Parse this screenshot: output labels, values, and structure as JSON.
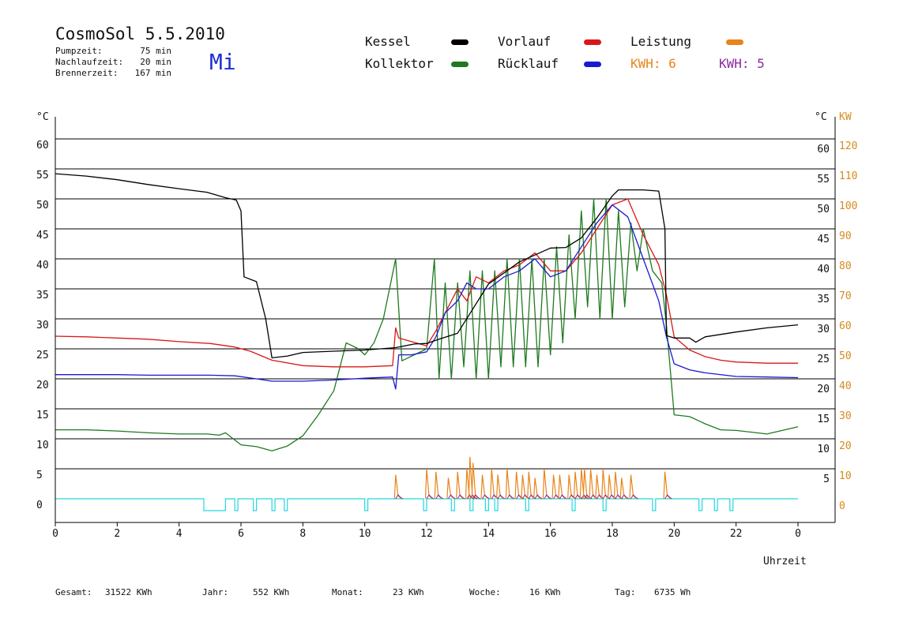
{
  "header": {
    "title": "CosmoSol 5.5.2010",
    "day": "Mi",
    "stats": [
      {
        "label": "Pumpzeit:",
        "value": "75 min"
      },
      {
        "label": "Nachlaufzeit:",
        "value": "20 min"
      },
      {
        "label": "Brennerzeit:",
        "value": "167 min"
      }
    ]
  },
  "legend": {
    "kessel": "Kessel",
    "kollektor": "Kollektor",
    "vorlauf": "Vorlauf",
    "ruecklauf": "Rücklauf",
    "leistung": "Leistung",
    "kwh1": "KWH: 6",
    "kwh2": "KWH: 5"
  },
  "footer": [
    {
      "label": "Gesamt:",
      "value": "31522 KWh"
    },
    {
      "label": "Jahr:",
      "value": "552 KWh"
    },
    {
      "label": "Monat:",
      "value": "23 KWh"
    },
    {
      "label": "Woche:",
      "value": "16 KWh"
    },
    {
      "label": "Tag:",
      "value": "6735 Wh"
    }
  ],
  "colors": {
    "kessel": "#000000",
    "kollektor": "#1f7a1f",
    "vorlauf": "#d81818",
    "ruecklauf": "#1a1ad0",
    "leistung": "#e8841a",
    "kwh2": "#8a2aa0",
    "pump": "#20d8e0",
    "axis_right": "#d88a1c"
  },
  "chart_data": {
    "type": "line",
    "xlabel": "Uhrzeit",
    "x_ticks": [
      "0",
      "2",
      "4",
      "6",
      "8",
      "10",
      "12",
      "14",
      "16",
      "18",
      "20",
      "22",
      "0"
    ],
    "xlim": [
      0,
      24
    ],
    "y_left_unit": "°C",
    "y_right_unit_1": "°C",
    "y_right_unit_2": "KW",
    "ylim": [
      0,
      60
    ],
    "y_ticks": [
      "0",
      "5",
      "10",
      "15",
      "20",
      "25",
      "30",
      "35",
      "40",
      "45",
      "50",
      "55",
      "60"
    ],
    "y_ticks_right": [
      "5",
      "10",
      "15",
      "20",
      "25",
      "30",
      "35",
      "40",
      "45",
      "50",
      "55",
      "60"
    ],
    "y2_ticks": [
      "0",
      "10",
      "20",
      "30",
      "40",
      "50",
      "60",
      "70",
      "80",
      "90",
      "100",
      "110",
      "120"
    ],
    "y2lim": [
      0,
      120
    ],
    "grid": true,
    "series": [
      {
        "name": "Kessel",
        "x": [
          0,
          1,
          2,
          3,
          4,
          4.9,
          5.5,
          5.85,
          6.0,
          6.1,
          6.5,
          6.8,
          7.0,
          7.5,
          8,
          9,
          10,
          11,
          11.6,
          12.0,
          12.4,
          13,
          14,
          15,
          16,
          16.5,
          17.0,
          17.5,
          18.0,
          18.2,
          19.0,
          19.5,
          19.7,
          19.75,
          20,
          20.5,
          20.7,
          21,
          22,
          23,
          24
        ],
        "y": [
          54.2,
          53.8,
          53.2,
          52.4,
          51.7,
          51.1,
          50.2,
          49.8,
          48,
          37,
          36.2,
          30,
          23.5,
          23.8,
          24.4,
          24.6,
          24.8,
          25.2,
          25.8,
          25.9,
          26.6,
          27.6,
          35.8,
          39.5,
          41.8,
          41.9,
          43.5,
          46.8,
          50.5,
          51.5,
          51.5,
          51.3,
          45,
          27.2,
          26.8,
          26.8,
          26.1,
          27,
          27.8,
          28.5,
          29.0
        ]
      },
      {
        "name": "Kollektor",
        "x": [
          0,
          1,
          2,
          3,
          4,
          4.9,
          5.3,
          5.5,
          6,
          6.5,
          7,
          7.5,
          8,
          8.5,
          9,
          9.4,
          9.8,
          10,
          10.3,
          10.6,
          11,
          11.2,
          12,
          12.25,
          12.4,
          12.6,
          12.8,
          13,
          13.2,
          13.4,
          13.6,
          13.8,
          14,
          14.2,
          14.4,
          14.6,
          14.8,
          15,
          15.2,
          15.4,
          15.6,
          15.8,
          16,
          16.2,
          16.4,
          16.6,
          16.8,
          17,
          17.2,
          17.4,
          17.6,
          17.8,
          18,
          18.2,
          18.4,
          18.6,
          18.8,
          19,
          19.3,
          19.6,
          19.75,
          20,
          20.5,
          21,
          21.5,
          22,
          23,
          24
        ],
        "y": [
          11.5,
          11.5,
          11.3,
          11,
          10.8,
          10.8,
          10.6,
          11,
          9,
          8.7,
          8,
          8.8,
          10.5,
          14,
          18,
          26,
          25,
          24,
          26,
          30,
          40,
          23,
          25,
          40,
          20,
          36,
          20,
          36,
          22,
          38,
          20,
          38,
          20,
          38,
          22,
          40,
          22,
          40,
          22,
          40,
          22,
          40,
          24,
          42,
          26,
          44,
          30,
          48,
          32,
          50,
          30,
          50,
          30,
          48,
          32,
          46,
          38,
          45,
          38,
          36,
          29,
          14,
          13.7,
          12.5,
          11.5,
          11.4,
          10.8,
          12.0
        ]
      },
      {
        "name": "Vorlauf",
        "x": [
          0,
          1,
          2,
          3,
          4,
          5,
          5.8,
          6.3,
          7,
          8,
          9,
          10,
          10.9,
          11.0,
          11.1,
          12,
          12.3,
          12.6,
          13,
          13.3,
          13.6,
          14,
          14.5,
          15,
          15.5,
          16,
          16.5,
          17,
          17.5,
          18,
          18.5,
          19,
          19.5,
          19.75,
          20,
          20.5,
          21,
          21.5,
          22,
          23,
          24
        ],
        "y": [
          27.1,
          27.0,
          26.8,
          26.6,
          26.2,
          25.9,
          25.3,
          24.6,
          23.1,
          22.2,
          22.0,
          22.0,
          22.2,
          28.5,
          26.8,
          25.5,
          28,
          31,
          35,
          33,
          37,
          36,
          38,
          39,
          41,
          38,
          38,
          41,
          45,
          49,
          50,
          44,
          39,
          34,
          27,
          24.8,
          23.7,
          23.1,
          22.8,
          22.6,
          22.6
        ]
      },
      {
        "name": "Rücklauf",
        "x": [
          0,
          1,
          2,
          3,
          4,
          5,
          5.8,
          6.5,
          7,
          8,
          9,
          10,
          10.9,
          11.0,
          11.1,
          11.5,
          12,
          12.3,
          12.6,
          13,
          13.3,
          13.6,
          14,
          14.5,
          15,
          15.5,
          16,
          16.5,
          17,
          17.5,
          18,
          18.5,
          19,
          19.5,
          19.75,
          20,
          20.5,
          21,
          22,
          23,
          24
        ],
        "y": [
          20.7,
          20.7,
          20.7,
          20.6,
          20.6,
          20.6,
          20.5,
          20.0,
          19.6,
          19.6,
          19.8,
          20.1,
          20.3,
          18.3,
          24,
          24,
          24.5,
          27,
          31,
          33,
          36,
          35,
          35,
          37,
          38,
          40,
          37,
          38,
          42,
          46,
          49,
          47,
          40,
          33,
          27,
          22.5,
          21.5,
          21,
          20.4,
          20.3,
          20.2
        ]
      }
    ],
    "leistung_spikes_hour": [
      11.0,
      12.0,
      12.3,
      12.7,
      13.0,
      13.3,
      13.4,
      13.5,
      13.8,
      14.1,
      14.3,
      14.6,
      14.9,
      15.1,
      15.3,
      15.5,
      15.8,
      16.1,
      16.3,
      16.6,
      16.8,
      17.0,
      17.1,
      17.3,
      17.5,
      17.7,
      17.9,
      18.1,
      18.3,
      18.6,
      19.7
    ],
    "leistung_spikes_kw": [
      8,
      10,
      9,
      7,
      9,
      10,
      14,
      12,
      8,
      10,
      8,
      10,
      9,
      8,
      9,
      7,
      10,
      8,
      8,
      8,
      9,
      10,
      10,
      10,
      8,
      10,
      8,
      9,
      7,
      8,
      9
    ],
    "pump_on_intervals_hour": [
      [
        4.8,
        5.5
      ],
      [
        5.8,
        5.9
      ],
      [
        6.4,
        6.5
      ],
      [
        7.0,
        7.1
      ],
      [
        7.4,
        7.5
      ],
      [
        10.0,
        10.1
      ],
      [
        11.9,
        12.0
      ],
      [
        12.8,
        12.9
      ],
      [
        13.4,
        13.5
      ],
      [
        13.9,
        14.0
      ],
      [
        14.2,
        14.3
      ],
      [
        15.2,
        15.3
      ],
      [
        16.7,
        16.8
      ],
      [
        17.7,
        17.8
      ],
      [
        19.3,
        19.4
      ],
      [
        20.8,
        20.9
      ],
      [
        21.3,
        21.4
      ],
      [
        21.8,
        21.9
      ]
    ]
  }
}
